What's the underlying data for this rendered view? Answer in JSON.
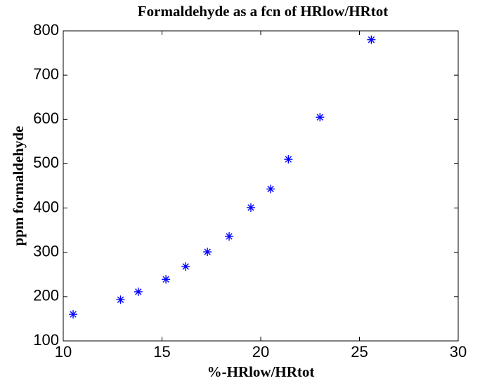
{
  "chart_data": {
    "type": "scatter",
    "title": "Formaldehyde as a fcn of HRlow/HRtot",
    "x_label": "%-HRlow/HRtot",
    "y_label": "ppm formaldehyde",
    "x": [
      10.5,
      12.9,
      13.8,
      15.2,
      16.2,
      17.3,
      18.4,
      19.5,
      20.5,
      21.4,
      23.0,
      25.6
    ],
    "values": [
      160,
      193,
      211,
      239,
      268,
      301,
      336,
      401,
      443,
      510,
      605,
      780
    ],
    "color": "#0000ff",
    "marker": "asterisk",
    "xlim": [
      10,
      30
    ],
    "xticks": [
      10,
      15,
      20,
      25,
      30
    ],
    "ylim": [
      100,
      800
    ],
    "yticks": [
      100,
      200,
      300,
      400,
      500,
      600,
      700,
      800
    ],
    "grid": false
  }
}
